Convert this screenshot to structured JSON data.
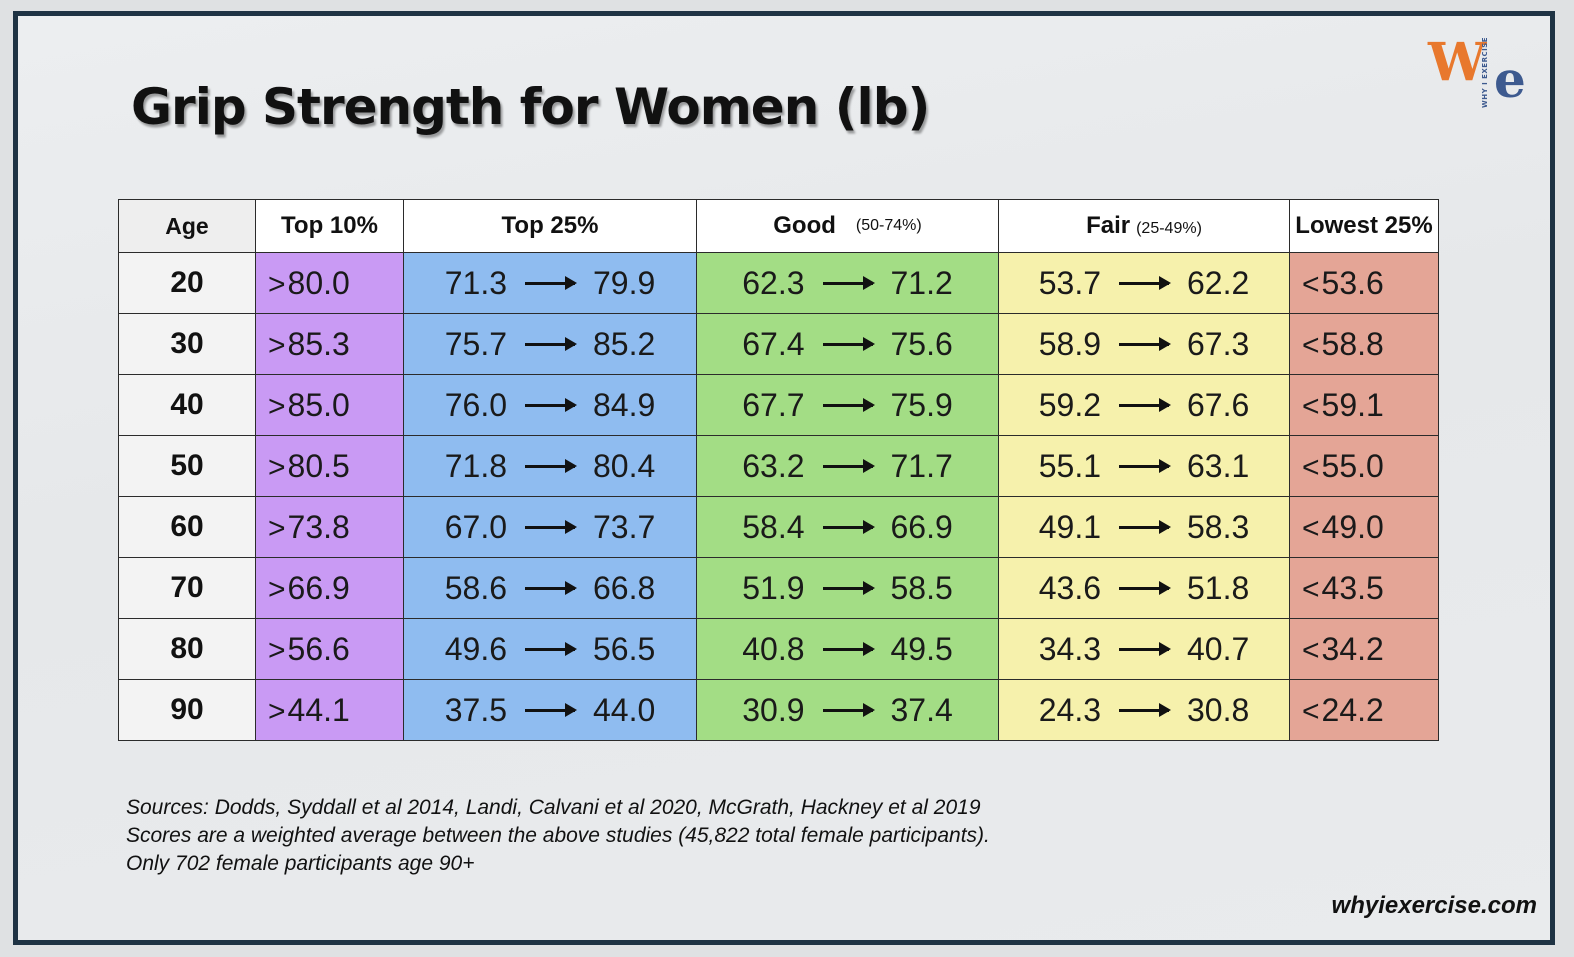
{
  "title": "Grip Strength for Women (lb)",
  "logo": {
    "mark_left": "W",
    "mark_right": "e",
    "tagline": "WHY I EXERCISE"
  },
  "table": {
    "headers": {
      "age": "Age",
      "top10": "Top 10%",
      "top25": "Top 25%",
      "good": "Good",
      "good_sub": "(50-74%)",
      "fair": "Fair",
      "fair_sub": "(25-49%)",
      "lowest": "Lowest 25%"
    },
    "gt": ">",
    "lt": "<",
    "rows": [
      {
        "age": "20",
        "top10": "80.0",
        "top25": [
          "71.3",
          "79.9"
        ],
        "good": [
          "62.3",
          "71.2"
        ],
        "fair": [
          "53.7",
          "62.2"
        ],
        "lowest": "53.6"
      },
      {
        "age": "30",
        "top10": "85.3",
        "top25": [
          "75.7",
          "85.2"
        ],
        "good": [
          "67.4",
          "75.6"
        ],
        "fair": [
          "58.9",
          "67.3"
        ],
        "lowest": "58.8"
      },
      {
        "age": "40",
        "top10": "85.0",
        "top25": [
          "76.0",
          "84.9"
        ],
        "good": [
          "67.7",
          "75.9"
        ],
        "fair": [
          "59.2",
          "67.6"
        ],
        "lowest": "59.1"
      },
      {
        "age": "50",
        "top10": "80.5",
        "top25": [
          "71.8",
          "80.4"
        ],
        "good": [
          "63.2",
          "71.7"
        ],
        "fair": [
          "55.1",
          "63.1"
        ],
        "lowest": "55.0"
      },
      {
        "age": "60",
        "top10": "73.8",
        "top25": [
          "67.0",
          "73.7"
        ],
        "good": [
          "58.4",
          "66.9"
        ],
        "fair": [
          "49.1",
          "58.3"
        ],
        "lowest": "49.0"
      },
      {
        "age": "70",
        "top10": "66.9",
        "top25": [
          "58.6",
          "66.8"
        ],
        "good": [
          "51.9",
          "58.5"
        ],
        "fair": [
          "43.6",
          "51.8"
        ],
        "lowest": "43.5"
      },
      {
        "age": "80",
        "top10": "56.6",
        "top25": [
          "49.6",
          "56.5"
        ],
        "good": [
          "40.8",
          "49.5"
        ],
        "fair": [
          "34.3",
          "40.7"
        ],
        "lowest": "34.2"
      },
      {
        "age": "90",
        "top10": "44.1",
        "top25": [
          "37.5",
          "44.0"
        ],
        "good": [
          "30.9",
          "37.4"
        ],
        "fair": [
          "24.3",
          "30.8"
        ],
        "lowest": "24.2"
      }
    ]
  },
  "sources": [
    "Sources:  Dodds, Syddall et al 2014, Landi, Calvani et al 2020, McGrath, Hackney et al 2019",
    "Scores are a weighted average between the above studies (45,822 total female participants).",
    "Only 702 female participants age 90+"
  ],
  "site": "whyiexercise.com",
  "colors": {
    "top10": "#c99af4",
    "top25": "#8fbcf0",
    "good": "#a3dd85",
    "fair": "#f6f1ac",
    "lowest": "#e4a596",
    "frame": "#1f3344",
    "logo_w": "#e8782d",
    "logo_e": "#3d5a8f"
  }
}
